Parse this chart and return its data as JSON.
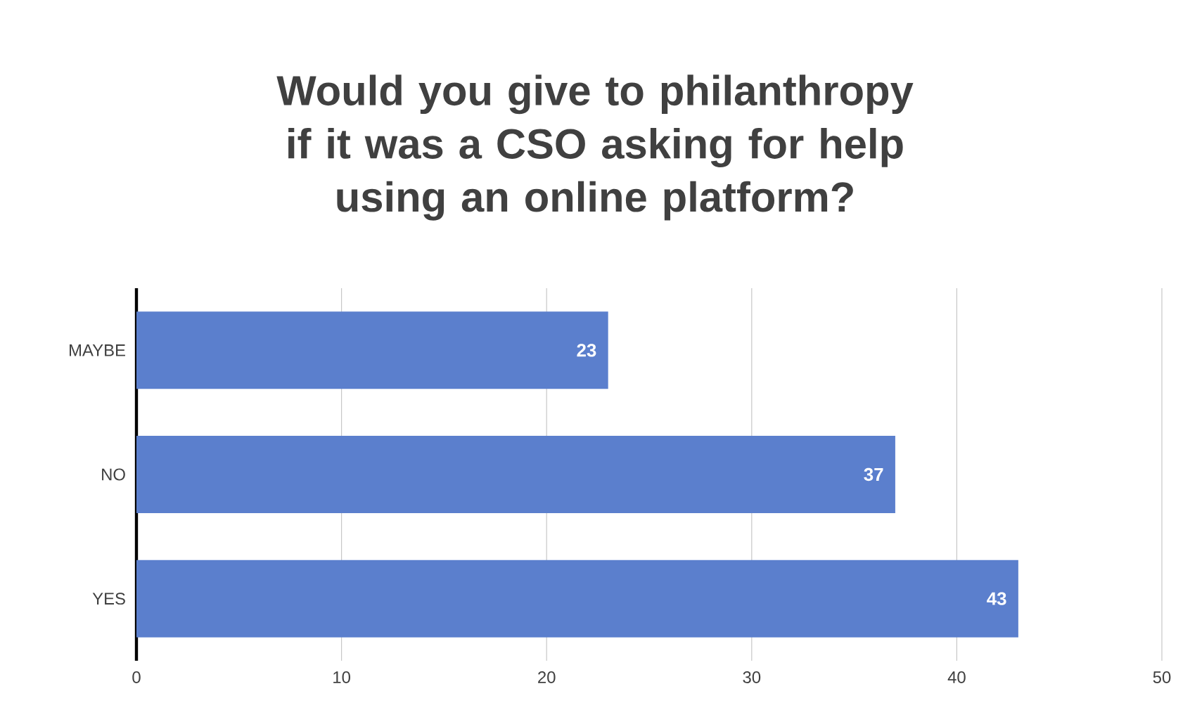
{
  "chart_data": {
    "type": "bar",
    "orientation": "horizontal",
    "title": "Would you give to philanthropy if it was a CSO asking for help using an online platform?",
    "categories": [
      "MAYBE",
      "NO",
      "YES"
    ],
    "values": [
      23,
      37,
      43
    ],
    "color": "#5b7fcd",
    "xlim": [
      0,
      50
    ],
    "xticks": [
      0,
      10,
      20,
      30,
      40,
      50
    ],
    "grid": "x",
    "data_labels": true
  }
}
